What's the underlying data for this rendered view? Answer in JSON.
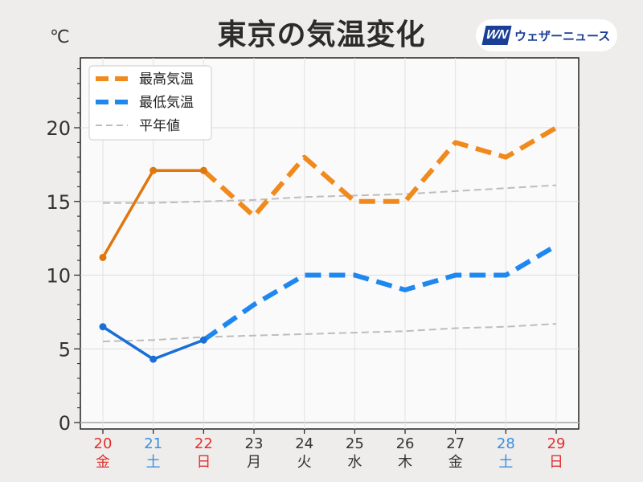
{
  "title": "東京の気温変化",
  "unit": "℃",
  "logo": {
    "mark": "WN",
    "text": "ウェザーニュース"
  },
  "colors": {
    "high": "#f08a1c",
    "high_obs": "#e0760e",
    "low": "#1e88f0",
    "low_obs": "#1a6fd6",
    "normal": "#bdbdbd",
    "weekday": "#333333",
    "saturday": "#3a8fe0",
    "sunday_holiday": "#e03030"
  },
  "chart_data": {
    "type": "line",
    "ylim": [
      0,
      24
    ],
    "yticks": [
      0,
      5,
      10,
      15,
      20
    ],
    "grid": true,
    "legend": "top-left",
    "categories": [
      {
        "day": "20",
        "weekday": "金",
        "kind": "holiday"
      },
      {
        "day": "21",
        "weekday": "土",
        "kind": "saturday"
      },
      {
        "day": "22",
        "weekday": "日",
        "kind": "sunday"
      },
      {
        "day": "23",
        "weekday": "月",
        "kind": "weekday"
      },
      {
        "day": "24",
        "weekday": "火",
        "kind": "weekday"
      },
      {
        "day": "25",
        "weekday": "水",
        "kind": "weekday"
      },
      {
        "day": "26",
        "weekday": "木",
        "kind": "weekday"
      },
      {
        "day": "27",
        "weekday": "金",
        "kind": "weekday"
      },
      {
        "day": "28",
        "weekday": "土",
        "kind": "saturday"
      },
      {
        "day": "29",
        "weekday": "日",
        "kind": "sunday"
      }
    ],
    "series": [
      {
        "name": "最高気温",
        "values": [
          11.2,
          17.1,
          17.1,
          14.0,
          18.0,
          15.0,
          15.0,
          19.0,
          18.0,
          20.0
        ],
        "observed_count": 3
      },
      {
        "name": "最低気温",
        "values": [
          6.5,
          4.3,
          5.6,
          8.0,
          10.0,
          10.0,
          9.0,
          10.0,
          10.0,
          12.0
        ],
        "observed_count": 3
      },
      {
        "name": "平年値",
        "values": [
          14.9,
          14.9,
          15.0,
          15.1,
          15.3,
          15.4,
          15.5,
          15.7,
          15.9,
          16.1
        ]
      },
      {
        "name": "平年値",
        "values": [
          5.5,
          5.6,
          5.8,
          5.9,
          6.0,
          6.1,
          6.2,
          6.4,
          6.5,
          6.7
        ],
        "in_legend": false
      }
    ]
  }
}
